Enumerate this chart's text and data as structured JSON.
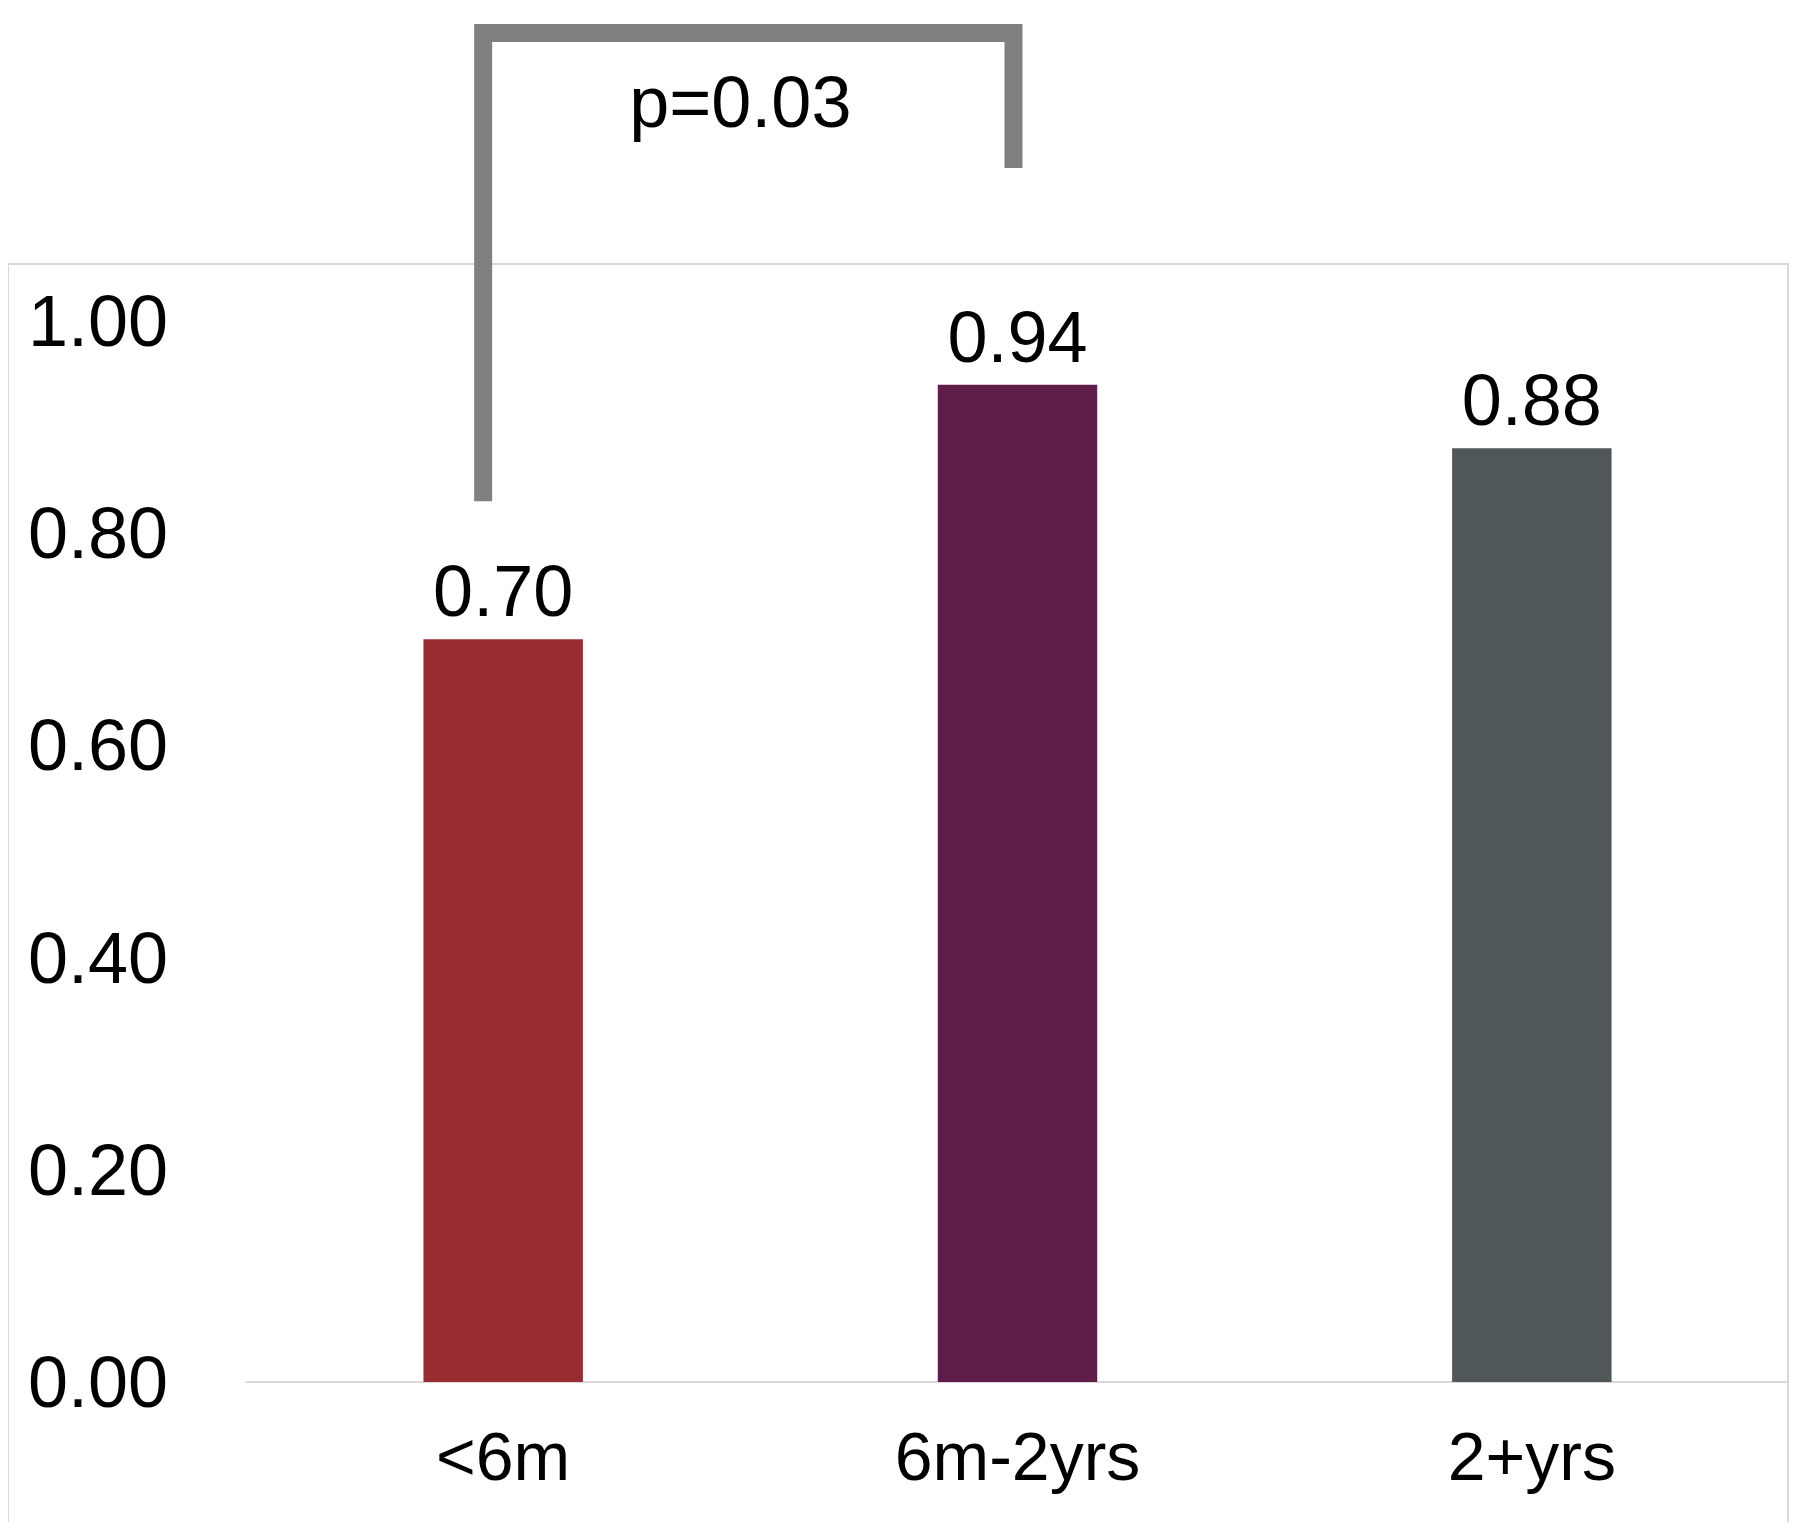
{
  "chart_data": {
    "type": "bar",
    "categories": [
      "<6m",
      "6m-2yrs",
      "2+yrs"
    ],
    "values": [
      0.7,
      0.94,
      0.88
    ],
    "colors": [
      "#982d31",
      "#611d4a",
      "#505759"
    ],
    "value_labels": [
      "0.70",
      "0.94",
      "0.88"
    ],
    "ylim": [
      0,
      1
    ],
    "yticks": [
      {
        "value": 0,
        "label": "0.00"
      },
      {
        "value": 0.2,
        "label": "0.20"
      },
      {
        "value": 0.4,
        "label": "0.40"
      },
      {
        "value": 0.6,
        "label": "0.60"
      },
      {
        "value": 0.8,
        "label": "0.80"
      },
      {
        "value": 1,
        "label": "1.00"
      }
    ],
    "annotations": [
      "p=0.03"
    ]
  }
}
